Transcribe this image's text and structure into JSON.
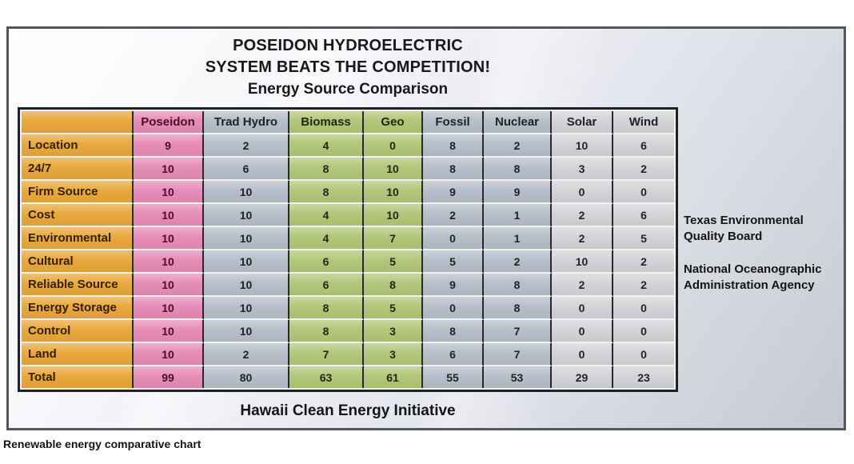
{
  "page": {
    "caption": "Renewable energy comparative chart"
  },
  "poster": {
    "title_line1": "POSEIDON HYDROELECTRIC",
    "title_line2": "SYSTEM BEATS THE COMPETITION!",
    "subtitle": "Energy Source Comparison",
    "footer": "Hawaii Clean Energy Initiative",
    "annotations": [
      "Texas Environmental Quality Board",
      "National Oceanographic Administration Agency"
    ]
  },
  "chart_data": {
    "type": "table",
    "title": "Energy Source Comparison",
    "corner_label": "",
    "columns": [
      "Poseidon",
      "Trad Hydro",
      "Biomass",
      "Geo",
      "Fossil",
      "Nuclear",
      "Solar",
      "Wind"
    ],
    "column_styles": [
      "pink",
      "bluegray",
      "green",
      "green",
      "bluegray",
      "bluegray",
      "gray",
      "gray"
    ],
    "rows": [
      {
        "label": "Location",
        "values": [
          9,
          2,
          4,
          0,
          8,
          2,
          10,
          6
        ]
      },
      {
        "label": "24/7",
        "values": [
          10,
          6,
          8,
          10,
          8,
          8,
          3,
          2
        ]
      },
      {
        "label": "Firm Source",
        "values": [
          10,
          10,
          8,
          10,
          9,
          9,
          0,
          0
        ]
      },
      {
        "label": "Cost",
        "values": [
          10,
          10,
          4,
          10,
          2,
          1,
          2,
          6
        ]
      },
      {
        "label": "Environmental",
        "values": [
          10,
          10,
          4,
          7,
          0,
          1,
          2,
          5
        ]
      },
      {
        "label": "Cultural",
        "values": [
          10,
          10,
          6,
          5,
          5,
          2,
          10,
          2
        ]
      },
      {
        "label": "Reliable Source",
        "values": [
          10,
          10,
          6,
          8,
          9,
          8,
          2,
          2
        ]
      },
      {
        "label": "Energy Storage",
        "values": [
          10,
          10,
          8,
          5,
          0,
          8,
          0,
          0
        ]
      },
      {
        "label": "Control",
        "values": [
          10,
          10,
          8,
          3,
          8,
          7,
          0,
          0
        ]
      },
      {
        "label": "Land",
        "values": [
          10,
          2,
          7,
          3,
          6,
          7,
          0,
          0
        ]
      },
      {
        "label": "Total",
        "values": [
          99,
          80,
          63,
          61,
          55,
          53,
          29,
          23
        ]
      }
    ],
    "colors": {
      "orange": {
        "bg": "#e9a83c",
        "fg": "#352102"
      },
      "pink": {
        "bg": "#e78cb8",
        "fg": "#471029"
      },
      "bluegray": {
        "bg": "#b6bfca",
        "fg": "#1e2229"
      },
      "green": {
        "bg": "#b2c779",
        "fg": "#1f290e"
      },
      "gray": {
        "bg": "#d2d4d7",
        "fg": "#222428"
      }
    },
    "layout_hints": {
      "grid": "table",
      "legend": "none"
    }
  }
}
